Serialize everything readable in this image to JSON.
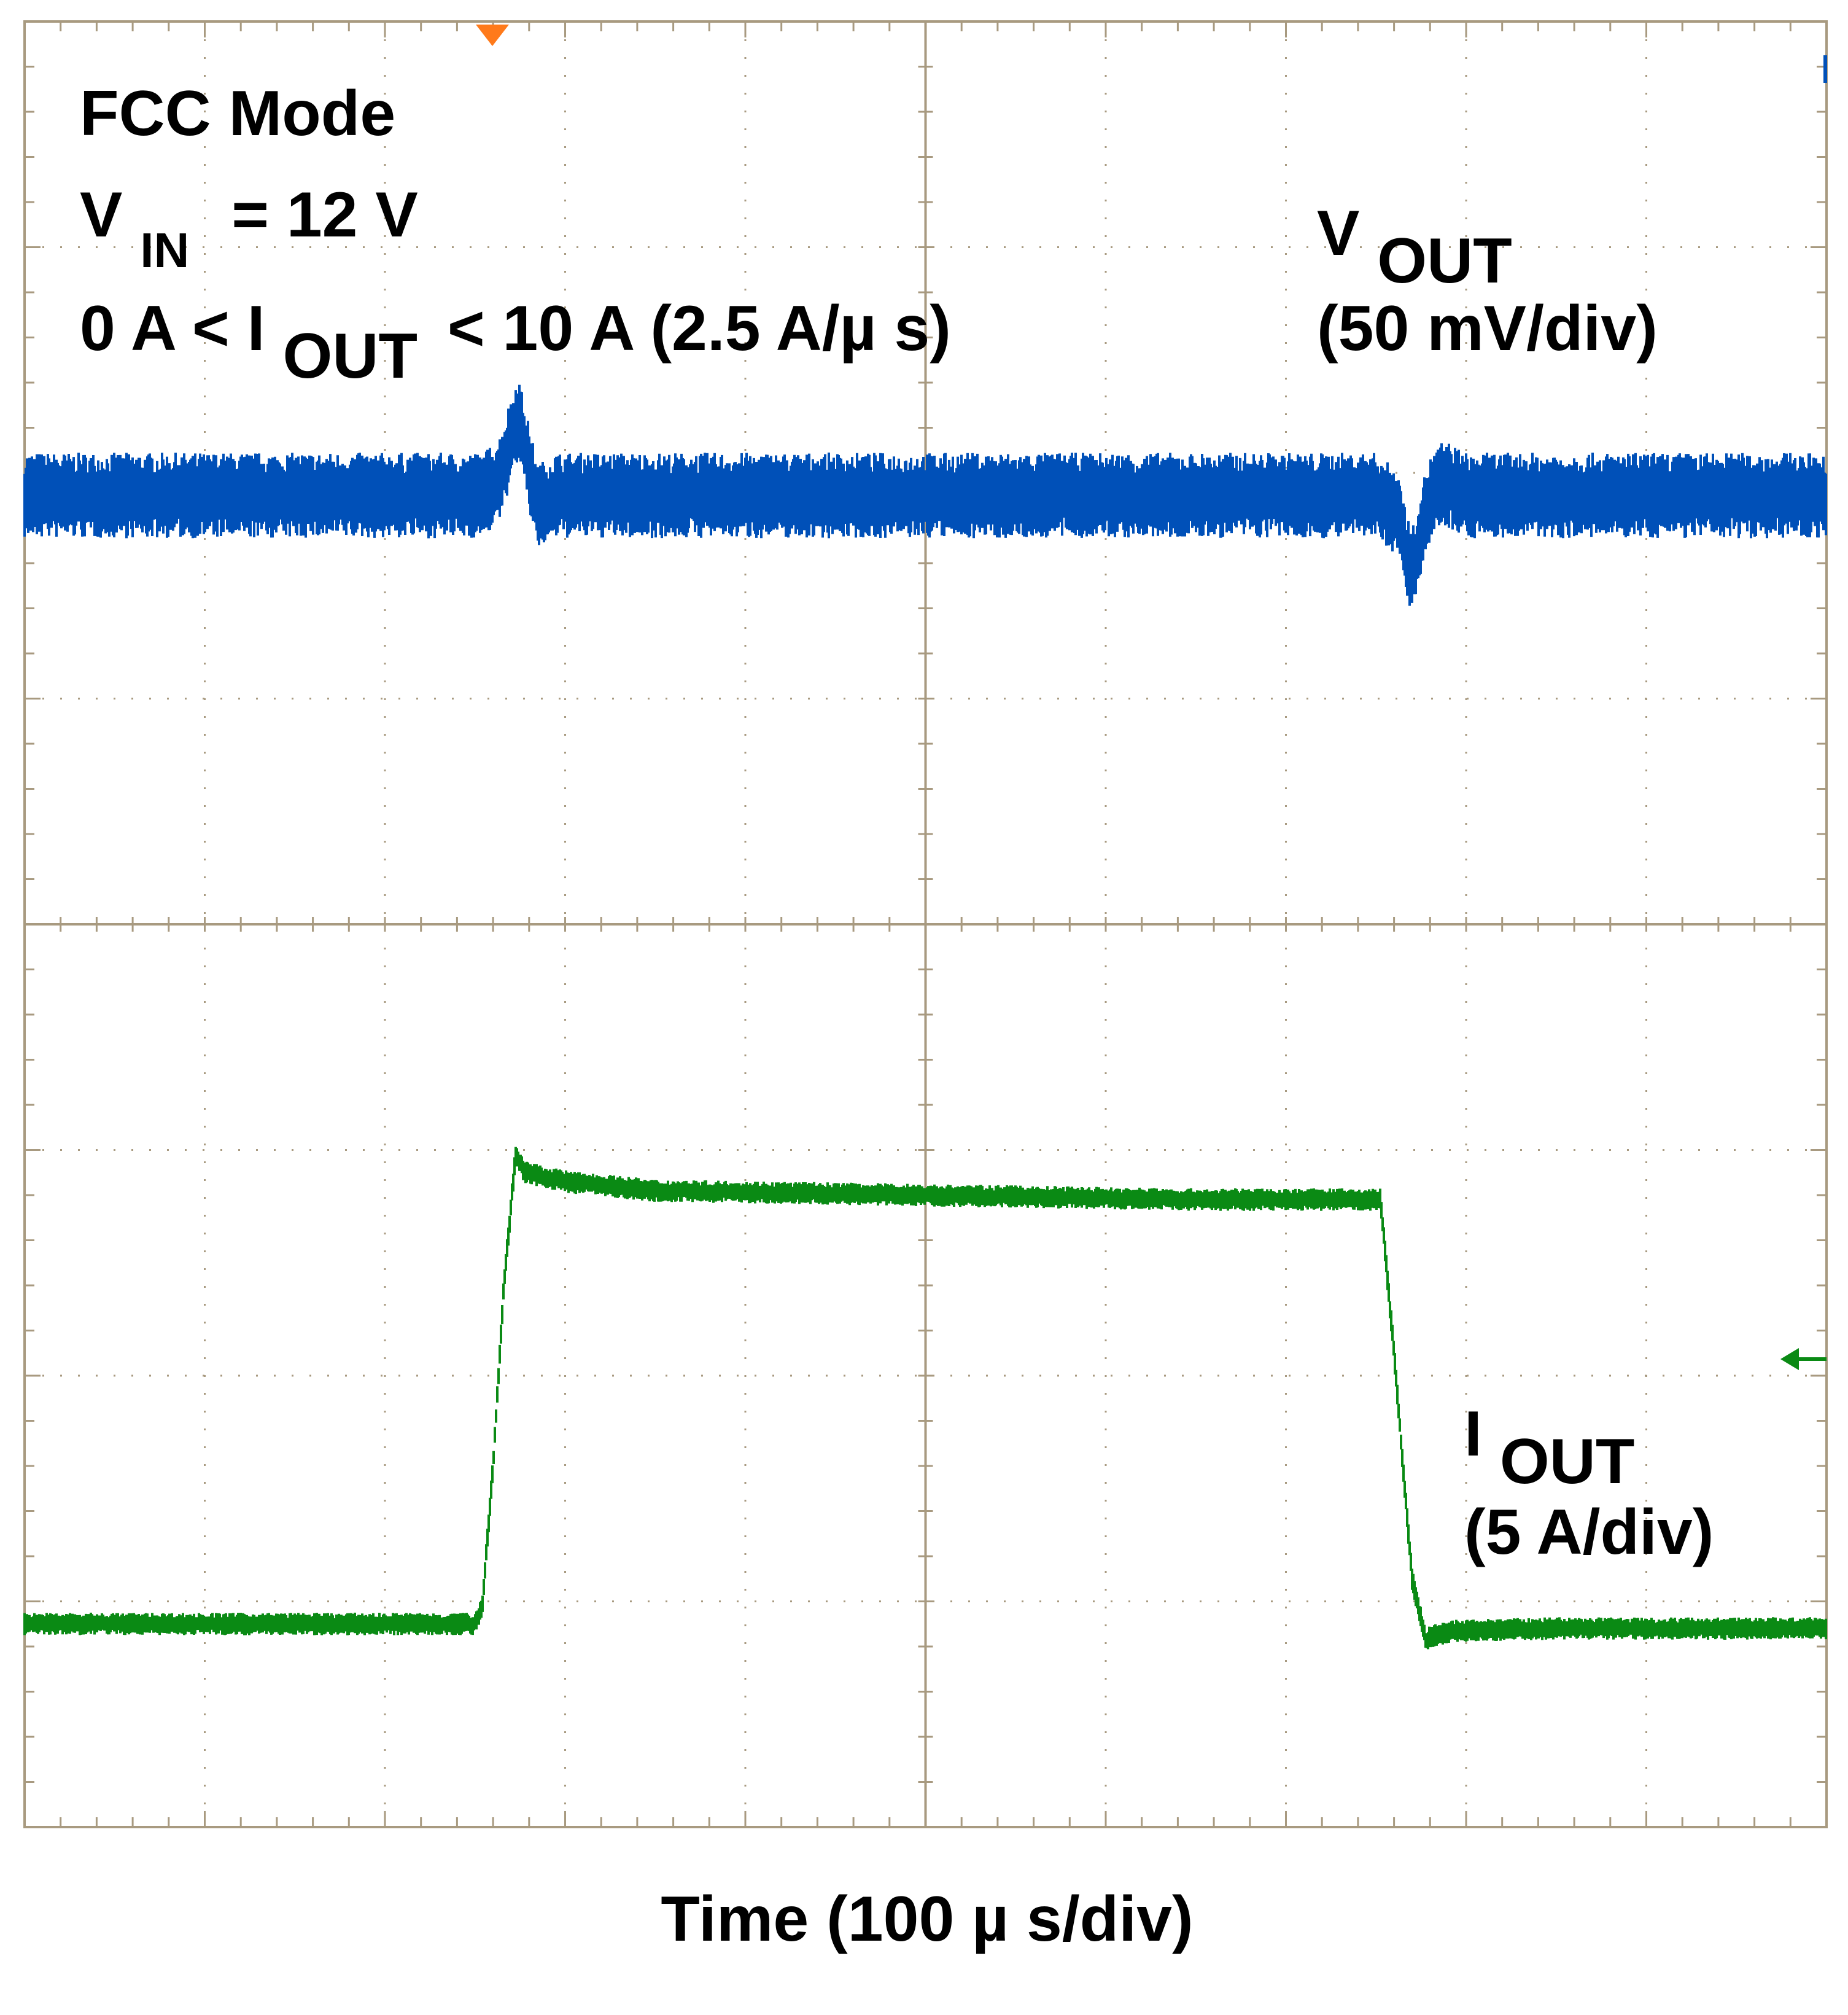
{
  "chart_data": {
    "type": "line",
    "subtype": "oscilloscope-capture",
    "x_axis": {
      "label": "Time (100 µ s/div)",
      "divisions": 10,
      "unit_per_div_us": 100,
      "xlim_us": [
        0,
        1000
      ]
    },
    "y_axis": {
      "divisions": 8,
      "grid": "dotted"
    },
    "annotations": {
      "mode": "FCC Mode",
      "vin": {
        "prefix": "V",
        "sub": "IN",
        "suffix": "= 12 V"
      },
      "iout_range": {
        "prefix": "0 A < I",
        "sub": "OUT",
        "suffix": "< 10 A (2.5 A/µ s)"
      }
    },
    "series": [
      {
        "label": {
          "prefix": "V",
          "sub": "OUT",
          "scale": "(50 mV/div)"
        },
        "color": "#0050b8",
        "baseline_div": 2.1,
        "noise_div": 0.19,
        "x_us": [
          0,
          510,
          528,
          538,
          548,
          560,
          570,
          590,
          1000,
          1500,
          1525,
          1533,
          1540,
          1550,
          1560,
          1575,
          1600,
          2000
        ],
        "offset_div": [
          0,
          0,
          -0.08,
          -0.22,
          -0.35,
          -0.12,
          0.05,
          0,
          0,
          0,
          0.08,
          0.25,
          0.35,
          0.15,
          0.02,
          -0.06,
          0,
          0
        ]
      },
      {
        "label": {
          "prefix": "I",
          "sub": "OUT",
          "scale": "(5 A/div)"
        },
        "color": "#0a8a14",
        "baseline_div": 7.1,
        "noise_div": 0.05,
        "x_us": [
          0,
          500,
          508,
          520,
          532,
          545,
          555,
          600,
          700,
          1000,
          1300,
          1505,
          1520,
          1540,
          1555,
          1565,
          1590,
          1700,
          2000
        ],
        "current_a": [
          0,
          0,
          0.4,
          3.5,
          7.5,
          10.4,
          10.0,
          9.8,
          9.6,
          9.5,
          9.4,
          9.4,
          6.0,
          1.0,
          -0.35,
          -0.25,
          -0.15,
          -0.1,
          -0.1
        ]
      }
    ],
    "markers": {
      "trigger": "orange-triangle-down-icon",
      "ch1_level": "left-arrow-icon"
    }
  }
}
